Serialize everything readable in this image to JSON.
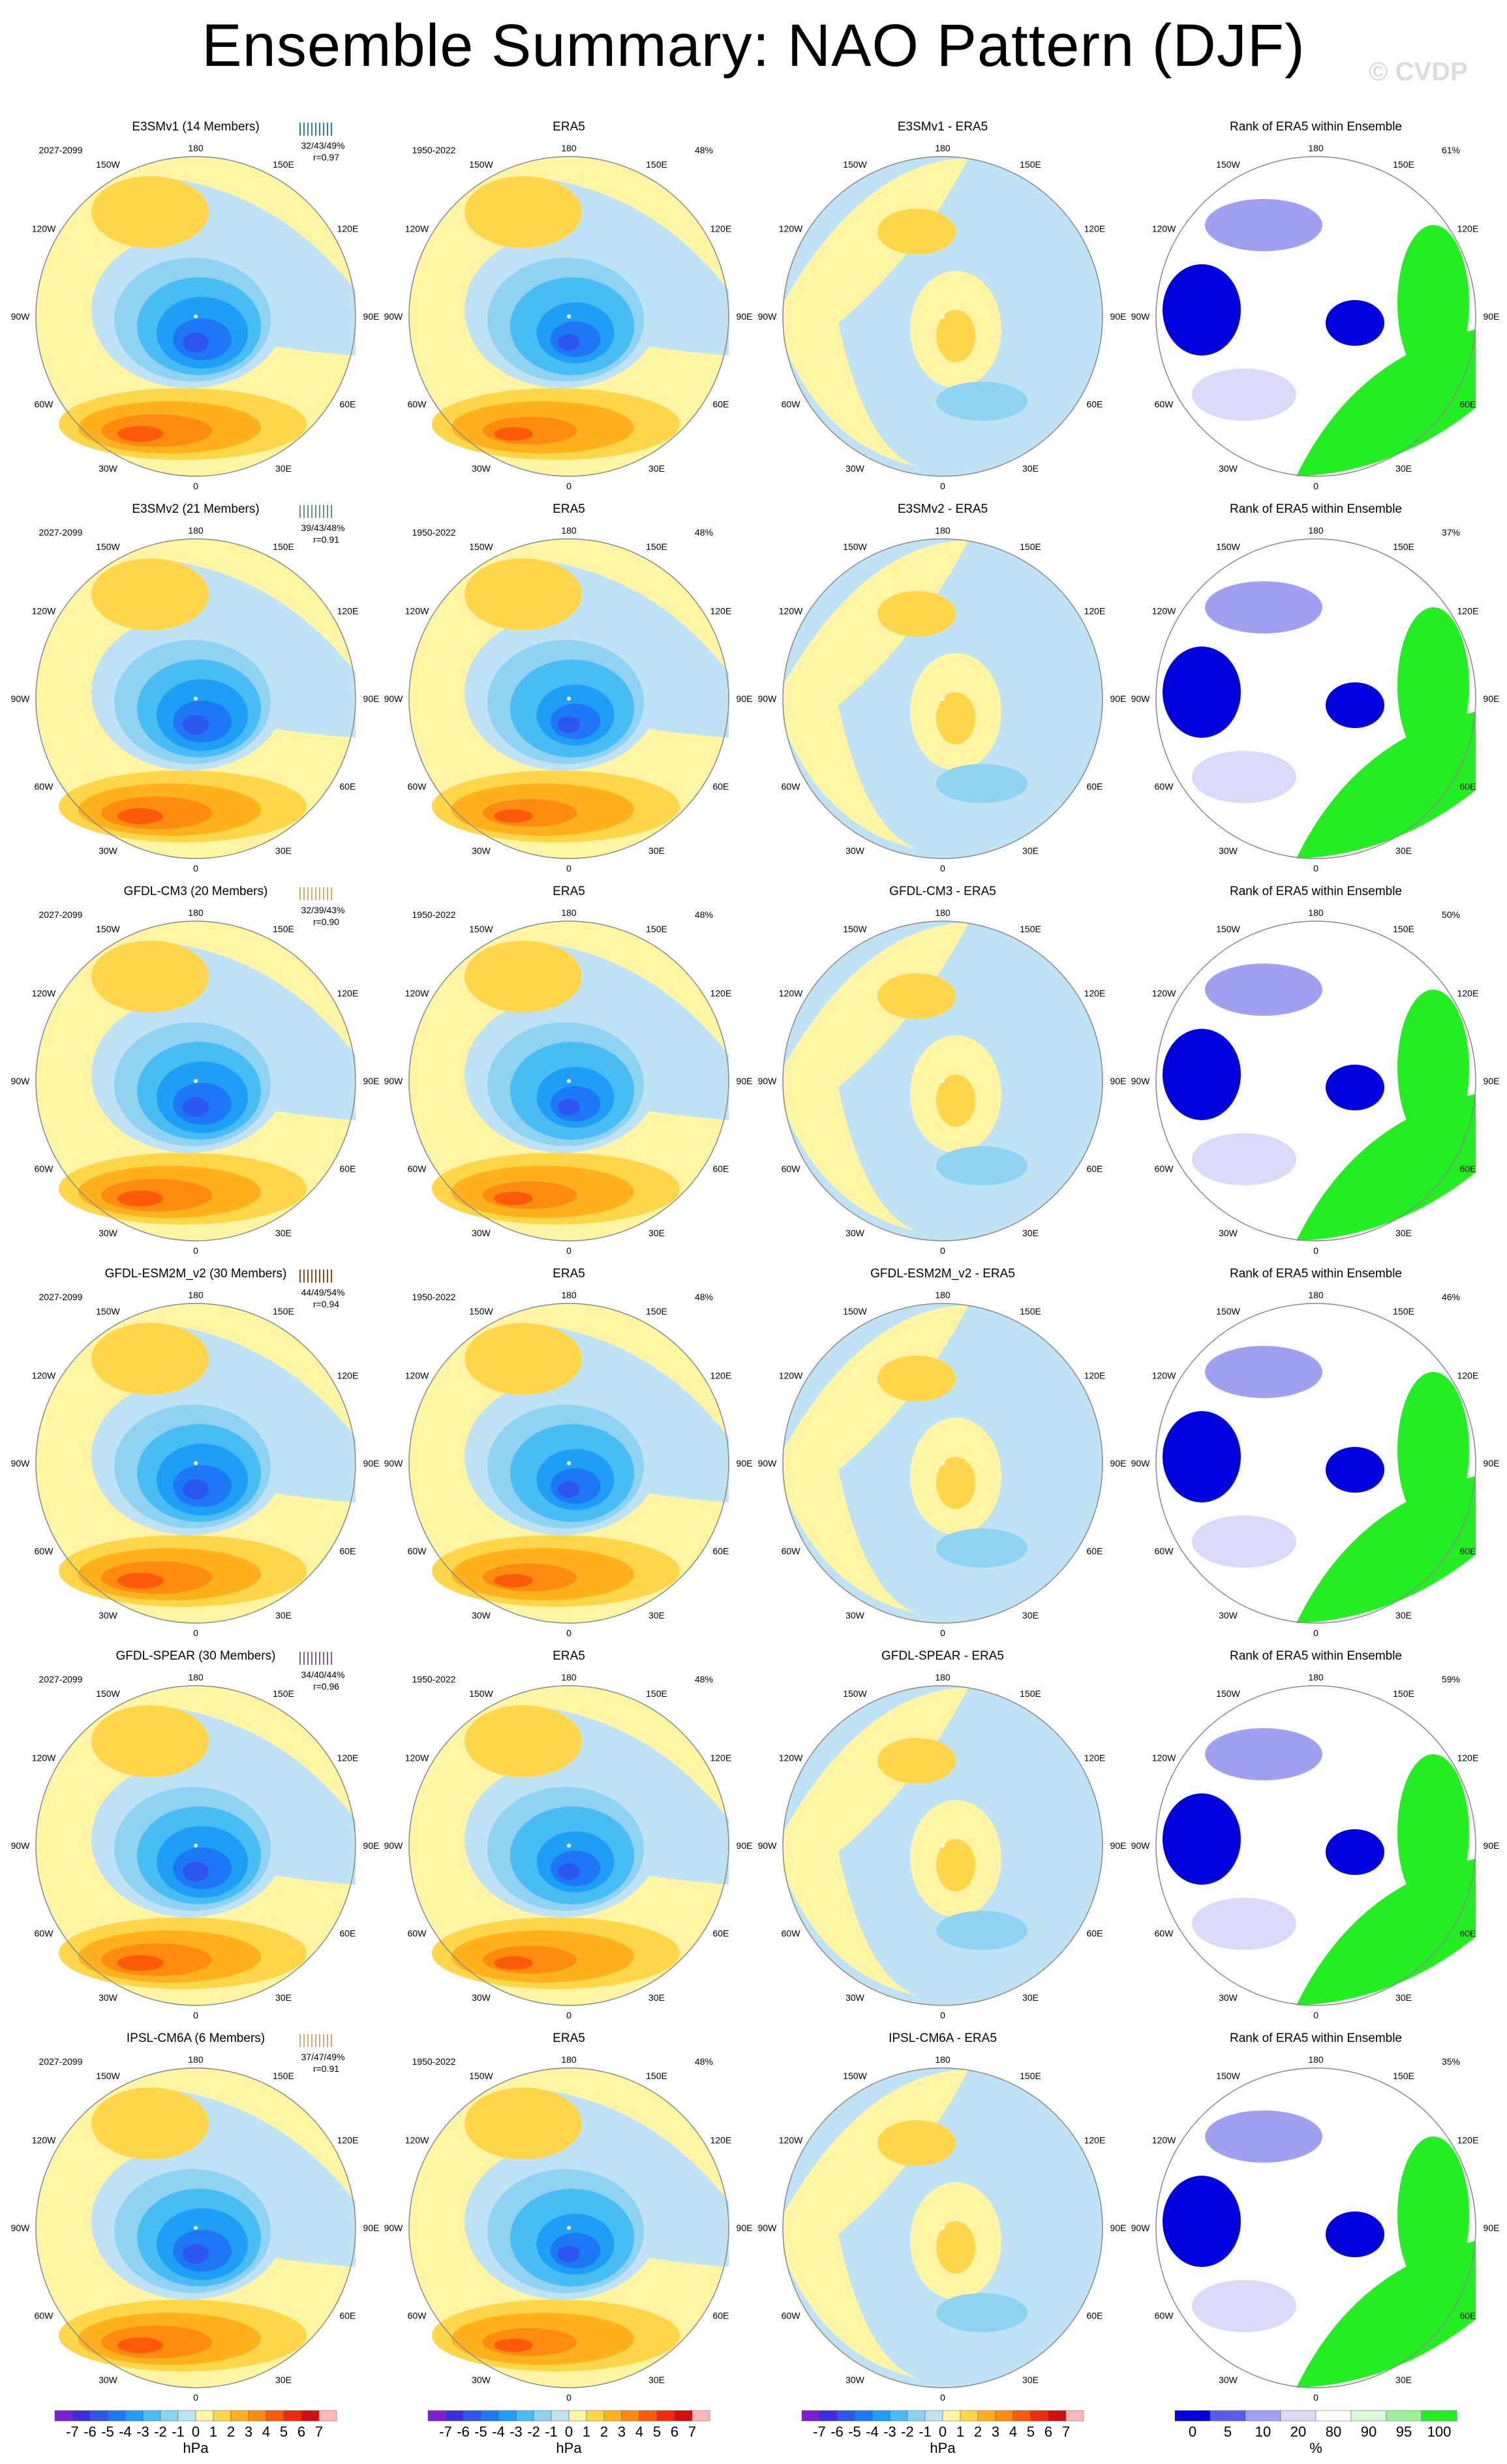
{
  "title": "Ensemble Summary: NAO Pattern (DJF)",
  "watermark": "© CVDP",
  "chart_data": {
    "type": "polar-map-grid",
    "field": "NAO Pattern (DJF)",
    "columns": [
      "model",
      "ERA5",
      "difference",
      "rank"
    ],
    "lon_labels": [
      "180",
      "150E",
      "120E",
      "90E",
      "60E",
      "30E",
      "0",
      "30W",
      "60W",
      "90W",
      "120W",
      "150W"
    ],
    "rows": [
      {
        "model": "E3SMv1 (14 Members)",
        "model_color": "#2f7fa8",
        "model_period": "2027-2099",
        "pct_stats": "32/43/49%",
        "corr": "r=0.97",
        "obs_title": "ERA5",
        "obs_period": "1950-2022",
        "obs_pct": "48%",
        "diff_title": "E3SMv1 - ERA5",
        "rank_title": "Rank of ERA5 within Ensemble",
        "rank_pct": "61%"
      },
      {
        "model": "E3SMv2 (21 Members)",
        "model_color": "#5a9a6e",
        "model_period": "2027-2099",
        "pct_stats": "39/43/48%",
        "corr": "r=0.91",
        "obs_title": "ERA5",
        "obs_period": "1950-2022",
        "obs_pct": "48%",
        "diff_title": "E3SMv2 - ERA5",
        "rank_title": "Rank of ERA5 within Ensemble",
        "rank_pct": "37%"
      },
      {
        "model": "GFDL-CM3 (20 Members)",
        "model_color": "#c8b464",
        "model_period": "2027-2099",
        "pct_stats": "32/39/43%",
        "corr": "r=0.90",
        "obs_title": "ERA5",
        "obs_period": "1950-2022",
        "obs_pct": "48%",
        "diff_title": "GFDL-CM3 - ERA5",
        "rank_title": "Rank of ERA5 within Ensemble",
        "rank_pct": "50%"
      },
      {
        "model": "GFDL-ESM2M_v2 (30 Members)",
        "model_color": "#8c4a1e",
        "model_period": "2027-2099",
        "pct_stats": "44/49/54%",
        "corr": "r=0.94",
        "obs_title": "ERA5",
        "obs_period": "1950-2022",
        "obs_pct": "48%",
        "diff_title": "GFDL-ESM2M_v2 - ERA5",
        "rank_title": "Rank of ERA5 within Ensemble",
        "rank_pct": "46%"
      },
      {
        "model": "GFDL-SPEAR (30 Members)",
        "model_color": "#7a5ab8",
        "model_period": "2027-2099",
        "pct_stats": "34/40/44%",
        "corr": "r=0.96",
        "obs_title": "ERA5",
        "obs_period": "1950-2022",
        "obs_pct": "48%",
        "diff_title": "GFDL-SPEAR - ERA5",
        "rank_title": "Rank of ERA5 within Ensemble",
        "rank_pct": "59%"
      },
      {
        "model": "IPSL-CM6A (6 Members)",
        "model_color": "#d4a880",
        "model_period": "2027-2099",
        "pct_stats": "37/47/49%",
        "corr": "r=0.91",
        "obs_title": "ERA5",
        "obs_period": "1950-2022",
        "obs_pct": "48%",
        "diff_title": "IPSL-CM6A - ERA5",
        "rank_title": "Rank of ERA5 within Ensemble",
        "rank_pct": "35%"
      }
    ],
    "colorbar_hpa": {
      "labels": [
        "-7",
        "-6",
        "-5",
        "-4",
        "-3",
        "-2",
        "-1",
        "0",
        "1",
        "2",
        "3",
        "4",
        "5",
        "6",
        "7"
      ],
      "colors": [
        "#7e1fd8",
        "#3c2ee0",
        "#2d55f0",
        "#1e78f5",
        "#1f9ef5",
        "#49bdf3",
        "#8fd2f2",
        "#bfe3f5",
        "#fff5a5",
        "#ffd64a",
        "#ffb21e",
        "#ff8c0f",
        "#ff5a0a",
        "#ee2a10",
        "#d01010",
        "#ffb8b8"
      ],
      "unit": "hPa"
    },
    "colorbar_rank": {
      "labels": [
        "0",
        "5",
        "10",
        "20",
        "80",
        "90",
        "95",
        "100"
      ],
      "colors": [
        "#0000dd",
        "#5a5ae8",
        "#a0a0f0",
        "#dadaf8",
        "#ffffff",
        "#dcf8dc",
        "#9cf09c",
        "#22ee22"
      ],
      "unit": "%"
    }
  }
}
